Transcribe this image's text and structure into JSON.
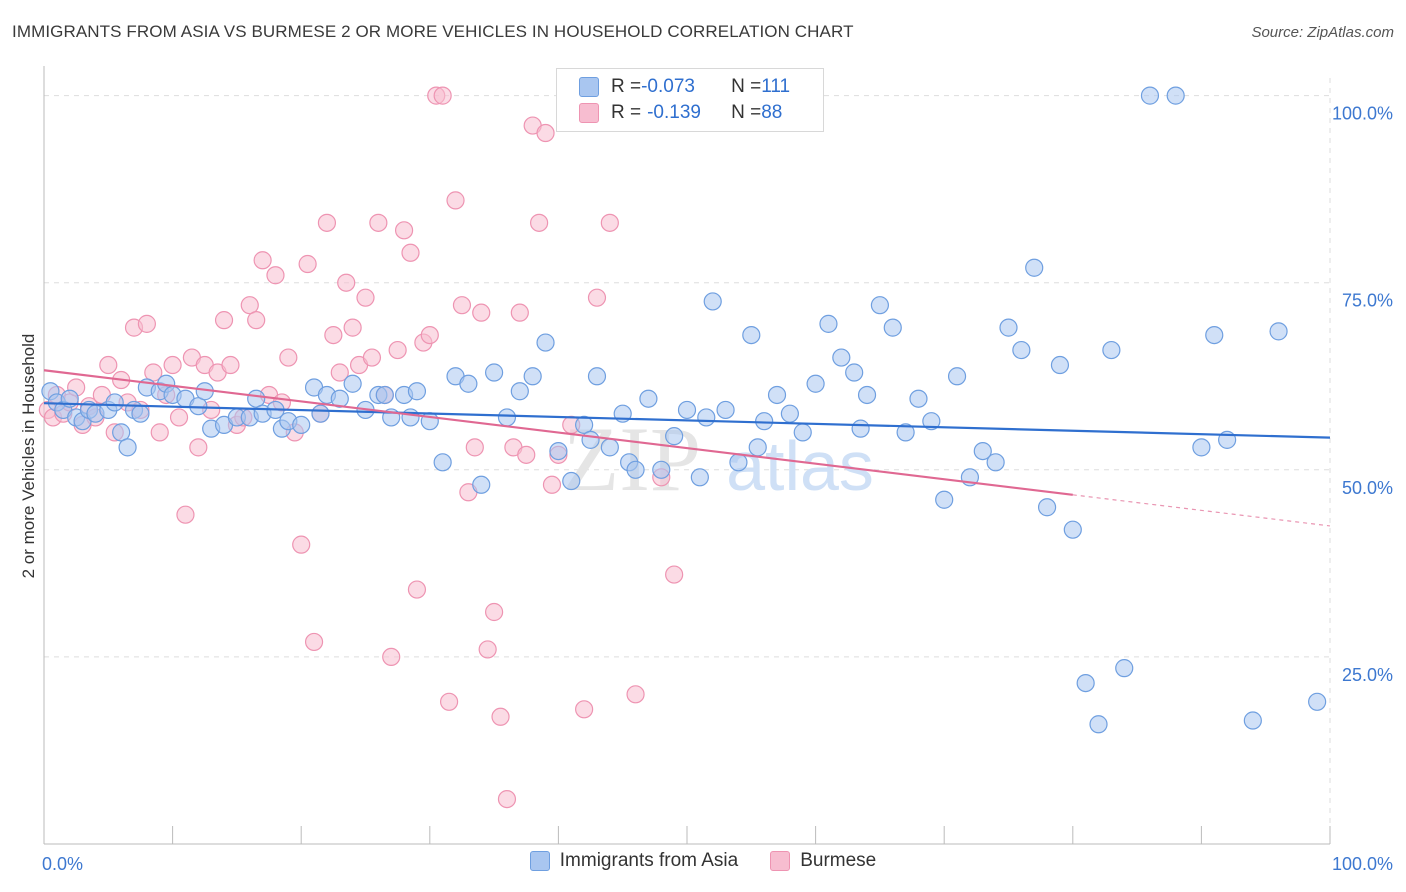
{
  "title": "IMMIGRANTS FROM ASIA VS BURMESE 2 OR MORE VEHICLES IN HOUSEHOLD CORRELATION CHART",
  "source": "Source: ZipAtlas.com",
  "watermark": {
    "zip": "ZIP",
    "atlas": "atlas"
  },
  "legend": {
    "rows": [
      {
        "r_label": "R = ",
        "r_value": "-0.073",
        "n_label": "N = ",
        "n_value": "111"
      },
      {
        "r_label": "R = ",
        "r_value": "-0.139",
        "n_label": "N = ",
        "n_value": "88"
      }
    ]
  },
  "colors": {
    "asia_fill": "#a9c6f0",
    "asia_stroke": "#6f9fe0",
    "asia_line": "#2f6fcf",
    "burmese_fill": "#f7bdd0",
    "burmese_stroke": "#ee94b2",
    "burmese_line": "#e06892",
    "tick_label": "#3d78d0",
    "grid": "#dddddd"
  },
  "chart_data": {
    "type": "scatter",
    "title": "IMMIGRANTS FROM ASIA VS BURMESE 2 OR MORE VEHICLES IN HOUSEHOLD CORRELATION CHART",
    "xlabel": "",
    "ylabel": "2 or more Vehicles in Household",
    "xlim": [
      0,
      100
    ],
    "ylim": [
      0,
      100
    ],
    "x_tick_labels": [
      {
        "value": 0,
        "label": "0.0%"
      },
      {
        "value": 100,
        "label": "100.0%"
      }
    ],
    "y_tick_labels": [
      {
        "value": 25,
        "label": "25.0%"
      },
      {
        "value": 50,
        "label": "50.0%"
      },
      {
        "value": 75,
        "label": "75.0%"
      },
      {
        "value": 100,
        "label": "100.0%"
      }
    ],
    "grid": true,
    "legend_position": "top-center",
    "series": [
      {
        "name": "Immigrants from Asia",
        "R": -0.073,
        "N": 111,
        "trend": {
          "x": [
            0,
            100
          ],
          "y": [
            58.9,
            54.3
          ],
          "solid_to": 100
        },
        "points": [
          [
            0.5,
            60.5
          ],
          [
            1,
            59
          ],
          [
            1.5,
            58
          ],
          [
            2,
            59.5
          ],
          [
            2.5,
            57
          ],
          [
            3,
            56.5
          ],
          [
            3.5,
            58
          ],
          [
            4,
            57.5
          ],
          [
            5,
            58
          ],
          [
            5.5,
            59
          ],
          [
            6,
            55
          ],
          [
            6.5,
            53
          ],
          [
            7,
            58
          ],
          [
            7.5,
            57.5
          ],
          [
            8,
            61
          ],
          [
            9,
            60.5
          ],
          [
            9.5,
            61.5
          ],
          [
            10,
            60
          ],
          [
            11,
            59.5
          ],
          [
            12,
            58.5
          ],
          [
            12.5,
            60.5
          ],
          [
            13,
            55.5
          ],
          [
            14,
            56
          ],
          [
            15,
            57
          ],
          [
            16,
            57
          ],
          [
            16.5,
            59.5
          ],
          [
            17,
            57.5
          ],
          [
            18,
            58
          ],
          [
            18.5,
            55.5
          ],
          [
            19,
            56.5
          ],
          [
            20,
            56
          ],
          [
            21,
            61
          ],
          [
            21.5,
            57.5
          ],
          [
            22,
            60
          ],
          [
            23,
            59.5
          ],
          [
            24,
            61.5
          ],
          [
            25,
            58
          ],
          [
            26,
            60
          ],
          [
            26.5,
            60
          ],
          [
            27,
            57
          ],
          [
            28,
            60
          ],
          [
            28.5,
            57
          ],
          [
            29,
            60.5
          ],
          [
            30,
            56.5
          ],
          [
            31,
            51
          ],
          [
            32,
            62.5
          ],
          [
            33,
            61.5
          ],
          [
            34,
            48
          ],
          [
            35,
            63
          ],
          [
            36,
            57
          ],
          [
            37,
            60.5
          ],
          [
            38,
            62.5
          ],
          [
            39,
            67
          ],
          [
            40,
            52.5
          ],
          [
            41,
            48.5
          ],
          [
            42,
            56
          ],
          [
            42.5,
            54
          ],
          [
            43,
            62.5
          ],
          [
            44,
            53
          ],
          [
            45,
            57.5
          ],
          [
            45.5,
            51
          ],
          [
            46,
            50
          ],
          [
            47,
            59.5
          ],
          [
            48,
            50
          ],
          [
            49,
            54.5
          ],
          [
            50,
            58
          ],
          [
            51,
            49
          ],
          [
            51.5,
            57
          ],
          [
            52,
            72.5
          ],
          [
            53,
            58
          ],
          [
            54,
            51
          ],
          [
            55,
            68
          ],
          [
            55.5,
            53
          ],
          [
            56,
            56.5
          ],
          [
            57,
            60
          ],
          [
            58,
            57.5
          ],
          [
            59,
            55
          ],
          [
            60,
            61.5
          ],
          [
            61,
            69.5
          ],
          [
            62,
            65
          ],
          [
            63,
            63
          ],
          [
            63.5,
            55.5
          ],
          [
            64,
            60
          ],
          [
            65,
            72
          ],
          [
            66,
            69
          ],
          [
            67,
            55
          ],
          [
            68,
            59.5
          ],
          [
            69,
            56.5
          ],
          [
            70,
            46
          ],
          [
            71,
            62.5
          ],
          [
            72,
            49
          ],
          [
            73,
            52.5
          ],
          [
            74,
            51
          ],
          [
            75,
            69
          ],
          [
            76,
            66
          ],
          [
            77,
            77
          ],
          [
            78,
            45
          ],
          [
            79,
            64
          ],
          [
            80,
            42
          ],
          [
            81,
            21.5
          ],
          [
            82,
            16
          ],
          [
            83,
            66
          ],
          [
            84,
            23.5
          ],
          [
            86,
            100
          ],
          [
            88,
            100
          ],
          [
            90,
            53
          ],
          [
            91,
            68
          ],
          [
            92,
            54
          ],
          [
            94,
            16.5
          ],
          [
            96,
            68.5
          ],
          [
            99,
            19
          ]
        ]
      },
      {
        "name": "Burmese",
        "R": -0.139,
        "N": 88,
        "trend": {
          "x": [
            0,
            100
          ],
          "y": [
            63.3,
            42.5
          ],
          "solid_to": 80
        },
        "points": [
          [
            0.3,
            58
          ],
          [
            0.7,
            57
          ],
          [
            1,
            60
          ],
          [
            1.5,
            57.5
          ],
          [
            2,
            59
          ],
          [
            2.5,
            61
          ],
          [
            3,
            56
          ],
          [
            3.5,
            58.5
          ],
          [
            4,
            57
          ],
          [
            4.5,
            60
          ],
          [
            5,
            64
          ],
          [
            5.5,
            55
          ],
          [
            6,
            62
          ],
          [
            6.5,
            59
          ],
          [
            7,
            69
          ],
          [
            7.5,
            58
          ],
          [
            8,
            69.5
          ],
          [
            8.5,
            63
          ],
          [
            9,
            55
          ],
          [
            9.5,
            60
          ],
          [
            10,
            64
          ],
          [
            10.5,
            57
          ],
          [
            11,
            44
          ],
          [
            11.5,
            65
          ],
          [
            12,
            53
          ],
          [
            12.5,
            64
          ],
          [
            13,
            58
          ],
          [
            13.5,
            63
          ],
          [
            14,
            70
          ],
          [
            14.5,
            64
          ],
          [
            15,
            56
          ],
          [
            15.5,
            57
          ],
          [
            16,
            72
          ],
          [
            16.5,
            70
          ],
          [
            17,
            78
          ],
          [
            17.5,
            60
          ],
          [
            18,
            76
          ],
          [
            18.5,
            59
          ],
          [
            19,
            65
          ],
          [
            19.5,
            55
          ],
          [
            20,
            40
          ],
          [
            20.5,
            77.5
          ],
          [
            21,
            27
          ],
          [
            21.5,
            57.5
          ],
          [
            22,
            83
          ],
          [
            22.5,
            68
          ],
          [
            23,
            63
          ],
          [
            23.5,
            75
          ],
          [
            24,
            69
          ],
          [
            24.5,
            64
          ],
          [
            25,
            73
          ],
          [
            25.5,
            65
          ],
          [
            26,
            83
          ],
          [
            26.5,
            60
          ],
          [
            27,
            25
          ],
          [
            27.5,
            66
          ],
          [
            28,
            82
          ],
          [
            28.5,
            79
          ],
          [
            29,
            34
          ],
          [
            29.5,
            67
          ],
          [
            30,
            68
          ],
          [
            30.5,
            100
          ],
          [
            31,
            100
          ],
          [
            31.5,
            19
          ],
          [
            32,
            86
          ],
          [
            32.5,
            72
          ],
          [
            33,
            47
          ],
          [
            33.5,
            53
          ],
          [
            34,
            71
          ],
          [
            34.5,
            26
          ],
          [
            35,
            31
          ],
          [
            35.5,
            17
          ],
          [
            36,
            6
          ],
          [
            36.5,
            53
          ],
          [
            37,
            71
          ],
          [
            37.5,
            52
          ],
          [
            38,
            96
          ],
          [
            38.5,
            83
          ],
          [
            39,
            95
          ],
          [
            39.5,
            48
          ],
          [
            40,
            52
          ],
          [
            41,
            56
          ],
          [
            42,
            18
          ],
          [
            43,
            73
          ],
          [
            44,
            83
          ],
          [
            46,
            20
          ],
          [
            48,
            49
          ],
          [
            49,
            36
          ]
        ]
      }
    ]
  }
}
